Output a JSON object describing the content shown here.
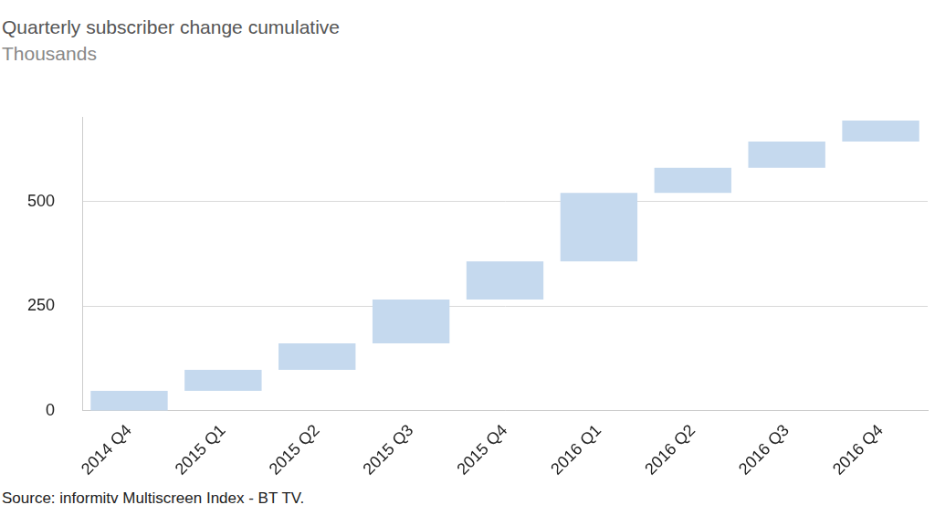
{
  "chart_data": {
    "type": "waterfall",
    "title": "Quarterly subscriber change cumulative",
    "subtitle": "Thousands",
    "source": "Source: informitv Multiscreen Index - BT TV.",
    "categories": [
      "2014 Q4",
      "2015 Q1",
      "2015 Q2",
      "2015 Q3",
      "2015 Q4",
      "2016 Q1",
      "2016 Q2",
      "2016 Q3",
      "2016 Q4"
    ],
    "values": [
      48,
      50,
      63,
      105,
      91,
      163,
      60,
      63,
      50
    ],
    "color": "#c5d9ee",
    "ylim": [
      0,
      700
    ],
    "yticks": [
      0,
      250,
      500
    ],
    "grid": true
  }
}
